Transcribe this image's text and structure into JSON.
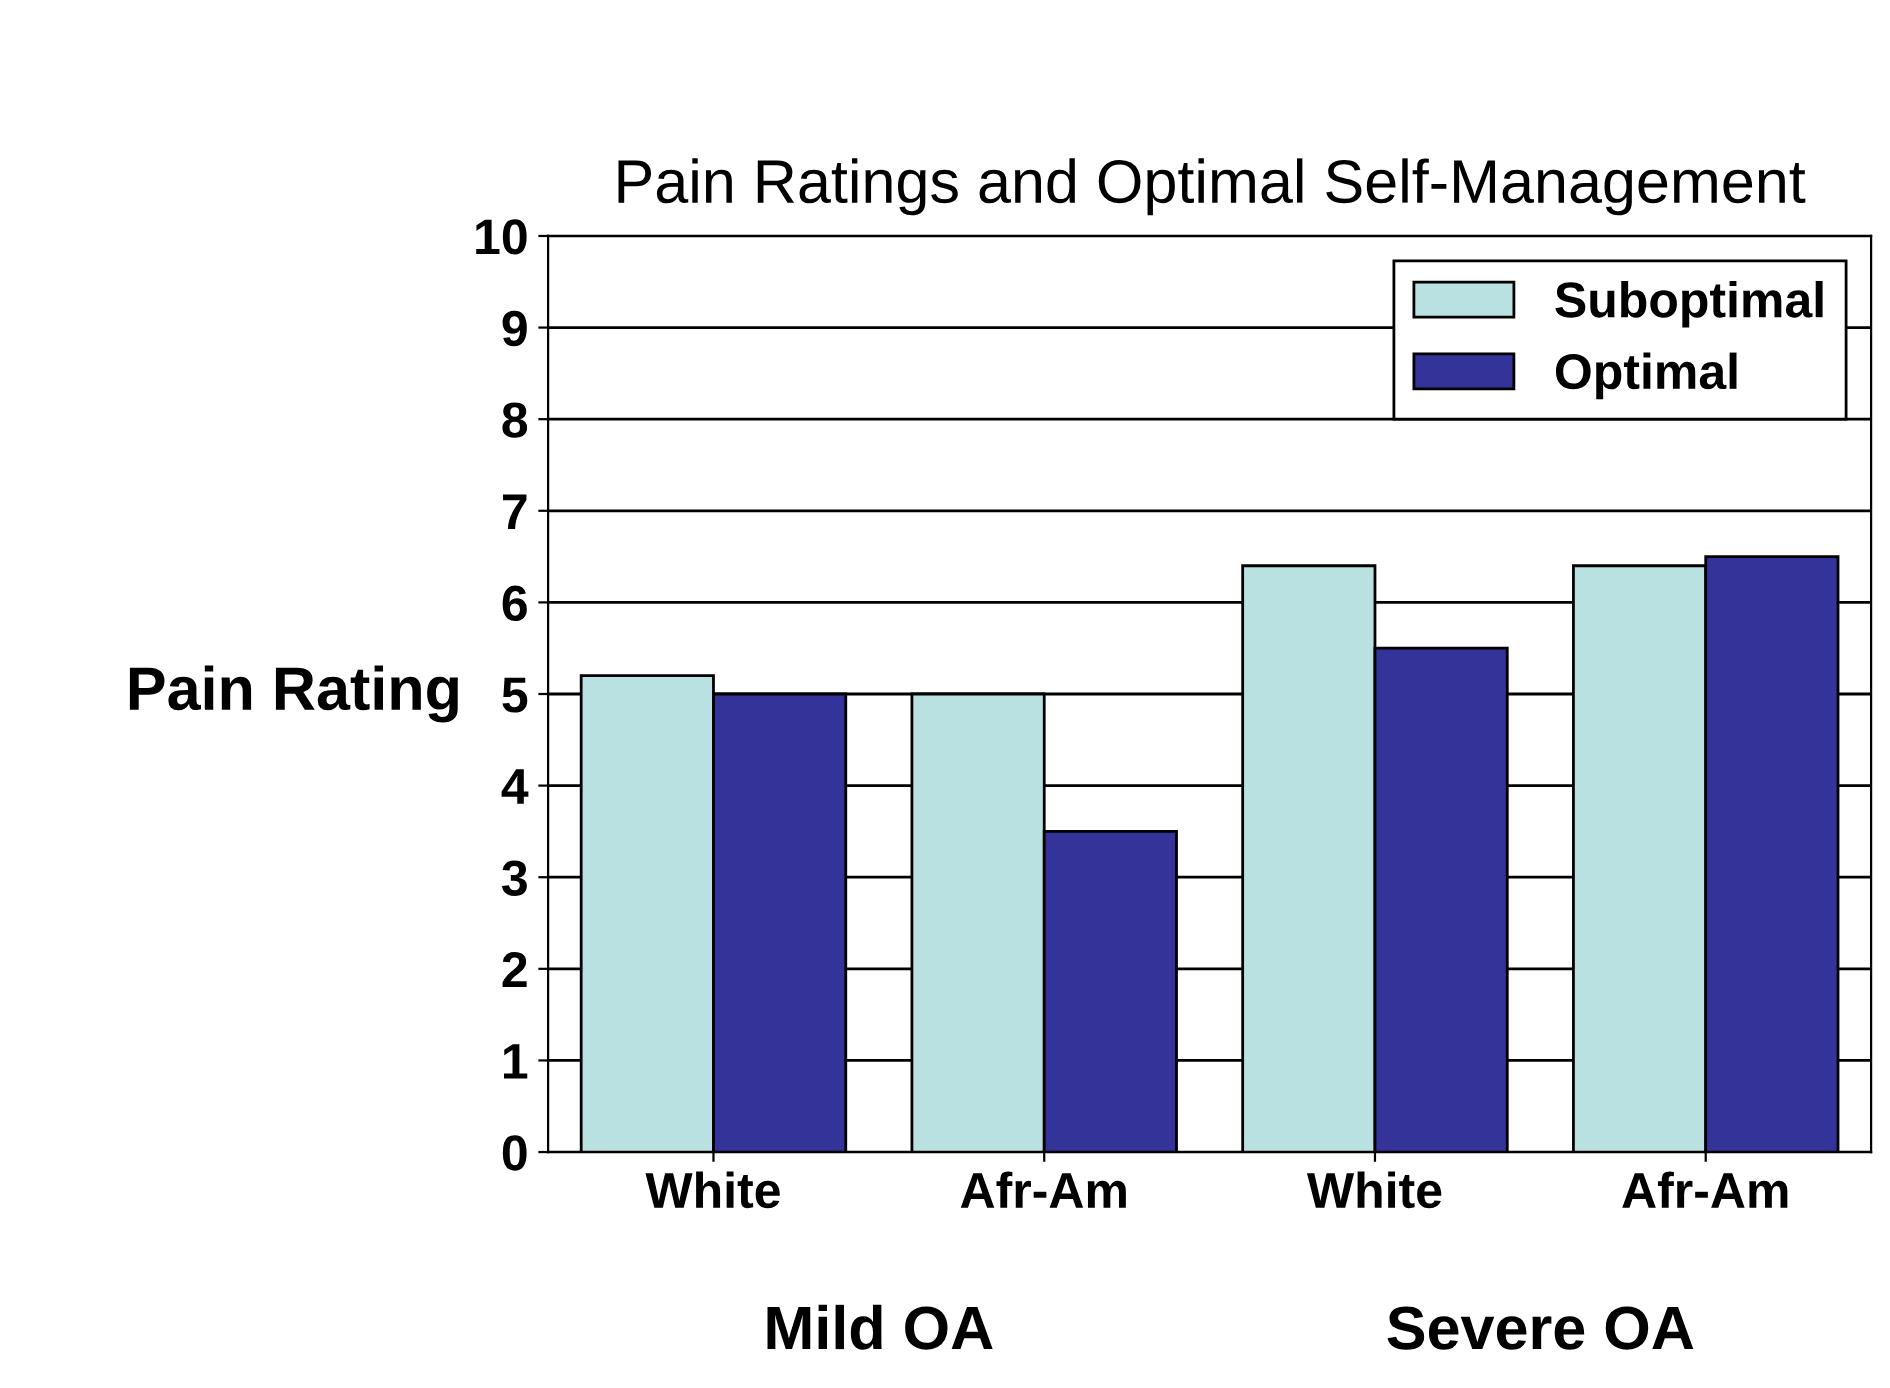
{
  "chart_data": {
    "type": "bar",
    "title": "Pain Ratings and Optimal Self-Management",
    "ylabel": "Pain Rating",
    "categories": [
      "White",
      "Afr-Am",
      "White",
      "Afr-Am"
    ],
    "series": [
      {
        "name": "Suboptimal",
        "color": "#b9e1e1",
        "values": [
          5.2,
          5.0,
          6.4,
          6.4
        ]
      },
      {
        "name": "Optimal",
        "color": "#333399",
        "values": [
          5.0,
          3.5,
          5.5,
          6.5
        ]
      }
    ],
    "ylim": [
      0,
      10
    ],
    "yticks": [
      0,
      1,
      2,
      3,
      4,
      5,
      6,
      7,
      8,
      9,
      10
    ],
    "grid": "y",
    "legend": "top right",
    "annotations": [
      "Mild OA",
      "Severe OA"
    ]
  }
}
